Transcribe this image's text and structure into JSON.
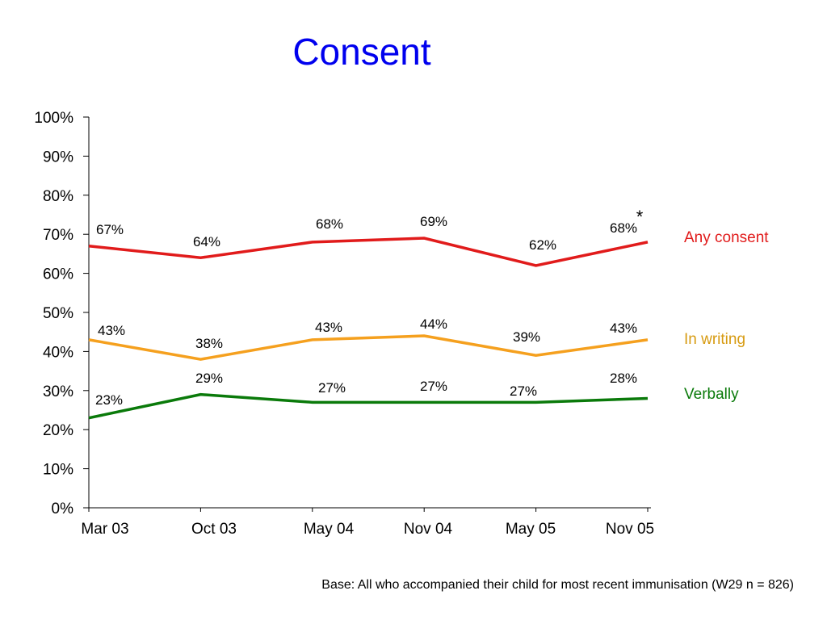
{
  "chart_data": {
    "type": "line",
    "title": "Consent",
    "categories": [
      "Mar 03",
      "Oct 03",
      "May 04",
      "Nov 04",
      "May 05",
      "Nov 05"
    ],
    "ylim": [
      0,
      100
    ],
    "yticks": [
      0,
      10,
      20,
      30,
      40,
      50,
      60,
      70,
      80,
      90,
      100
    ],
    "ytick_labels": [
      "0%",
      "10%",
      "20%",
      "30%",
      "40%",
      "50%",
      "60%",
      "70%",
      "80%",
      "90%",
      "100%"
    ],
    "series": [
      {
        "name": "Any consent",
        "color": "#e11b1b",
        "values": [
          67,
          64,
          68,
          69,
          62,
          68
        ],
        "labels": [
          "67%",
          "64%",
          "68%",
          "69%",
          "62%",
          "68%"
        ]
      },
      {
        "name": "In writing",
        "color": "#f5a01e",
        "label_color": "#d79b12",
        "values": [
          43,
          38,
          43,
          44,
          39,
          43
        ],
        "labels": [
          "43%",
          "38%",
          "43%",
          "44%",
          "39%",
          "43%"
        ]
      },
      {
        "name": "Verbally",
        "color": "#0a7a0a",
        "values": [
          23,
          29,
          27,
          27,
          27,
          28
        ],
        "labels": [
          "23%",
          "29%",
          "27%",
          "27%",
          "27%",
          "28%"
        ]
      }
    ],
    "annotation": "*",
    "grid": false,
    "legend": "right, inline labels"
  },
  "footnote": "Base: All who accompanied their child for most recent immunisation  (W29  n = 826)"
}
